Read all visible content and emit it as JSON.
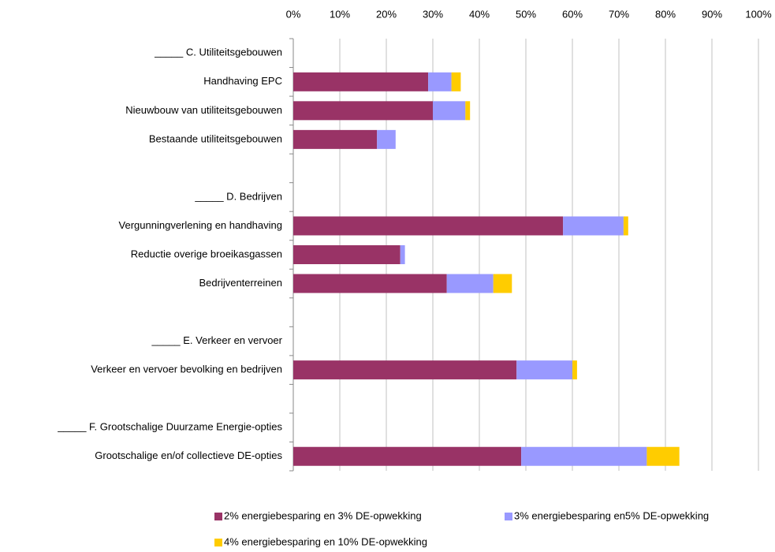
{
  "chart_data": {
    "type": "stacked-bar-horizontal",
    "categories": [
      "_____ C. Utiliteitsgebouwen",
      "Handhaving EPC",
      "Nieuwbouw van utiliteitsgebouwen",
      "Bestaande utiliteitsgebouwen",
      null,
      "_____ D. Bedrijven",
      "Vergunningverlening en handhaving",
      "Reductie overige broeikasgassen",
      "Bedrijventerreinen",
      null,
      "_____ E. Verkeer en vervoer",
      "Verkeer en vervoer bevolking en bedrijven",
      null,
      "_____ F. Grootschalige Duurzame Energie-opties",
      "Grootschalige en/of collectieve DE-opties"
    ],
    "series": [
      {
        "name": "2% energiebesparing en 3% DE-opwekking",
        "color": "#993366",
        "values": [
          null,
          29,
          30,
          18,
          null,
          null,
          58,
          23,
          33,
          null,
          null,
          48,
          null,
          null,
          49
        ]
      },
      {
        "name": "3% energiebesparing en5% DE-opwekking",
        "color": "#9999ff",
        "values": [
          null,
          5,
          7,
          4,
          null,
          null,
          13,
          1,
          10,
          null,
          null,
          12,
          null,
          null,
          27
        ]
      },
      {
        "name": "4% energiebesparing en 10% DE-opwekking",
        "color": "#ffcc00",
        "values": [
          null,
          2,
          1,
          0,
          null,
          null,
          1,
          0,
          4,
          null,
          null,
          1,
          null,
          null,
          7
        ]
      }
    ],
    "xlim": [
      0,
      100
    ],
    "xticks": [
      {
        "value": 0,
        "label": "0%"
      },
      {
        "value": 10,
        "label": "10%"
      },
      {
        "value": 20,
        "label": "20%"
      },
      {
        "value": 30,
        "label": "30%"
      },
      {
        "value": 40,
        "label": "40%"
      },
      {
        "value": 50,
        "label": "50%"
      },
      {
        "value": 60,
        "label": "60%"
      },
      {
        "value": 70,
        "label": "70%"
      },
      {
        "value": 80,
        "label": "80%"
      },
      {
        "value": 90,
        "label": "90%"
      },
      {
        "value": 100,
        "label": "100%"
      }
    ],
    "grid": true,
    "legend": "bottom"
  }
}
